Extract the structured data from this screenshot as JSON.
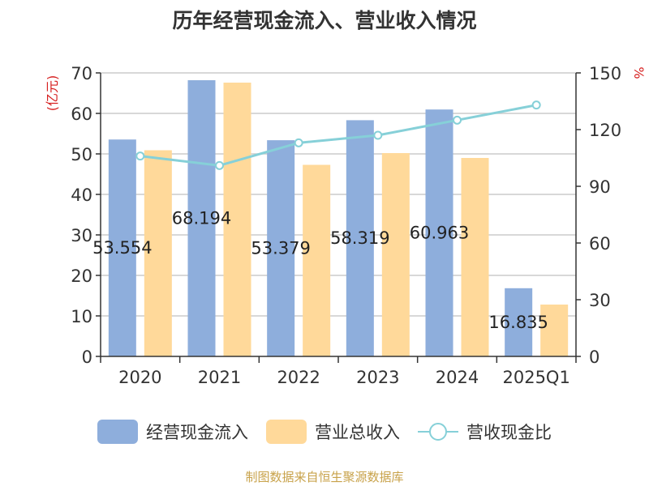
{
  "chart_data": {
    "type": "bar",
    "title": "历年经营现金流入、营业收入情况",
    "categories": [
      "2020",
      "2021",
      "2022",
      "2023",
      "2024",
      "2025Q1"
    ],
    "ylabel_left": "(亿元)",
    "ylabel_right": "%",
    "ylim_left": [
      0,
      70
    ],
    "ylim_right": [
      0,
      150
    ],
    "yticks_left": [
      0,
      10,
      20,
      30,
      40,
      50,
      60,
      70
    ],
    "yticks_right": [
      0,
      30,
      60,
      90,
      120,
      150
    ],
    "grid": true,
    "legend_position": "bottom",
    "series": [
      {
        "name": "经营现金流入",
        "kind": "bar",
        "axis": "left",
        "color": "#8eaedc",
        "values": [
          53.554,
          68.194,
          53.379,
          58.319,
          60.963,
          16.835
        ],
        "labels": [
          "53.554",
          "68.194",
          "53.379",
          "58.319",
          "60.963",
          "16.835"
        ]
      },
      {
        "name": "营业总收入",
        "kind": "bar",
        "axis": "left",
        "color": "#ffd99a",
        "values": [
          50.9,
          67.6,
          47.3,
          50.2,
          49.0,
          12.8
        ]
      },
      {
        "name": "营收现金比",
        "kind": "line",
        "axis": "right",
        "color": "#86d0d8",
        "values": [
          106,
          101,
          113,
          117,
          125,
          133
        ]
      }
    ]
  },
  "source": "制图数据来自恒生聚源数据库"
}
